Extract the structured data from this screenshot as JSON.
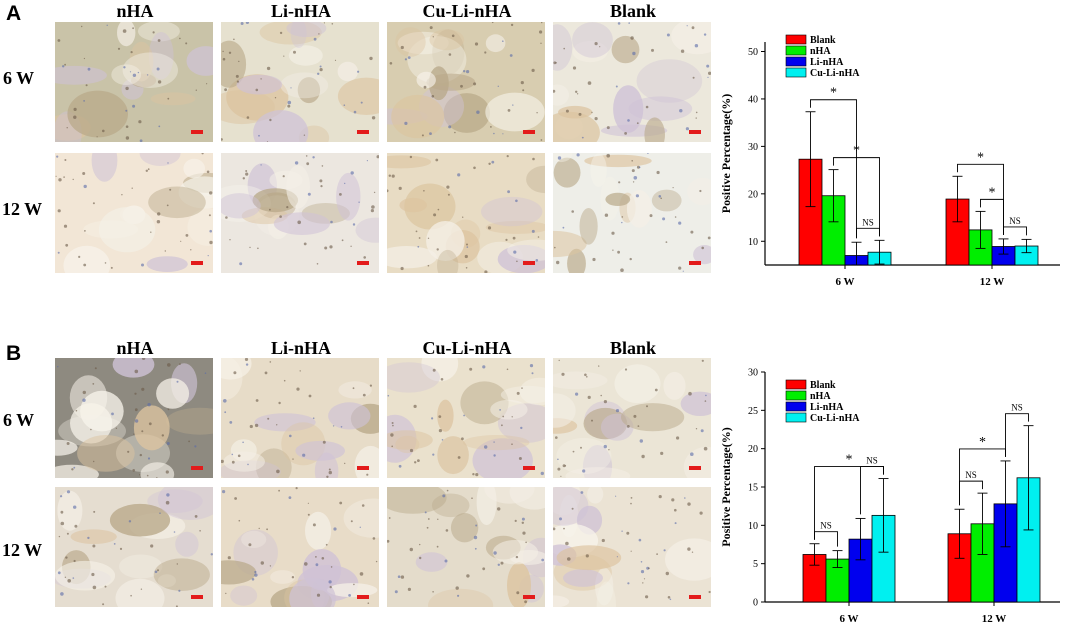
{
  "panels": [
    {
      "letter": "A",
      "columns": [
        "nHA",
        "Li-nHA",
        "Cu-Li-nHA",
        "Blank"
      ],
      "rows": [
        "6 W",
        "12 W"
      ]
    },
    {
      "letter": "B",
      "columns": [
        "nHA",
        "Li-nHA",
        "Cu-Li-nHA",
        "Blank"
      ],
      "rows": [
        "6 W",
        "12 W"
      ]
    }
  ],
  "colors": {
    "Blank": "#ff0000",
    "nHA": "#00ee00",
    "Li-nHA": "#0000ee",
    "Cu-Li-nHA": "#00f0f0"
  },
  "chart_data": [
    {
      "type": "bar",
      "categories": [
        "6 W",
        "12 W"
      ],
      "series": [
        {
          "name": "Blank",
          "values": [
            27.3,
            18.9
          ],
          "errors": [
            10.0,
            4.8
          ]
        },
        {
          "name": "nHA",
          "values": [
            19.6,
            12.4
          ],
          "errors": [
            5.5,
            3.9
          ]
        },
        {
          "name": "Li-nHA",
          "values": [
            7.0,
            8.9
          ],
          "errors": [
            2.8,
            1.6
          ]
        },
        {
          "name": "Cu-Li-nHA",
          "values": [
            7.7,
            9.0
          ],
          "errors": [
            2.5,
            1.4
          ]
        }
      ],
      "ylabel": "Positive Percentage(%)",
      "ylim": [
        5,
        52
      ],
      "yticks": [
        10,
        20,
        30,
        40,
        50
      ],
      "legend": "top-left",
      "annotations": [
        {
          "category": "6 W",
          "from": "Blank",
          "to": "Li-nHA",
          "label": "*"
        },
        {
          "category": "6 W",
          "from": "nHA",
          "to": "Cu-Li-nHA",
          "label": "*"
        },
        {
          "category": "6 W",
          "from": "Li-nHA",
          "to": "Cu-Li-nHA",
          "label": "NS"
        },
        {
          "category": "12 W",
          "from": "Blank",
          "to": "Li-nHA",
          "label": "*"
        },
        {
          "category": "12 W",
          "from": "nHA",
          "to": "Li-nHA",
          "label": "*"
        },
        {
          "category": "12 W",
          "from": "Li-nHA",
          "to": "Cu-Li-nHA",
          "label": "NS"
        }
      ]
    },
    {
      "type": "bar",
      "categories": [
        "6 W",
        "12 W"
      ],
      "series": [
        {
          "name": "Blank",
          "values": [
            6.2,
            8.9
          ],
          "errors": [
            1.4,
            3.2
          ]
        },
        {
          "name": "nHA",
          "values": [
            5.6,
            10.2
          ],
          "errors": [
            1.1,
            4.0
          ]
        },
        {
          "name": "Li-nHA",
          "values": [
            8.2,
            12.8
          ],
          "errors": [
            2.7,
            5.6
          ]
        },
        {
          "name": "Cu-Li-nHA",
          "values": [
            11.3,
            16.2
          ],
          "errors": [
            4.8,
            6.8
          ]
        }
      ],
      "ylabel": "Positive Percentage(%)",
      "ylim": [
        0,
        30
      ],
      "yticks": [
        0,
        5,
        10,
        15,
        20,
        25,
        30
      ],
      "legend": "top-left",
      "annotations": [
        {
          "category": "6 W",
          "from": "Blank",
          "to": "nHA",
          "label": "NS"
        },
        {
          "category": "6 W",
          "from": "Blank",
          "to": "Cu-Li-nHA",
          "label": "*"
        },
        {
          "category": "6 W",
          "from": "Li-nHA",
          "to": "Cu-Li-nHA",
          "label": "NS"
        },
        {
          "category": "12 W",
          "from": "Blank",
          "to": "nHA",
          "label": "NS"
        },
        {
          "category": "12 W",
          "from": "Blank",
          "to": "Li-nHA",
          "label": "*"
        },
        {
          "category": "12 W",
          "from": "Li-nHA",
          "to": "Cu-Li-nHA",
          "label": "NS"
        }
      ]
    }
  ]
}
